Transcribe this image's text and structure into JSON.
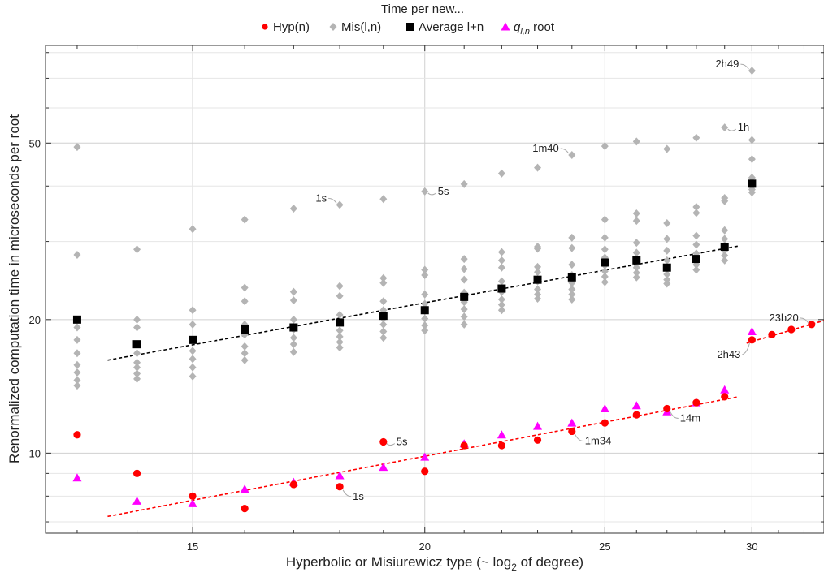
{
  "chart_data": {
    "type": "scatter",
    "title": "Time per new...",
    "xlabel": "Hyperbolic or Misiurewicz type (~ log",
    "xlabel_sub": "2",
    "xlabel_tail": " of degree)",
    "ylabel": "Renormalized computation time in microseconds per root",
    "x_scale": "log",
    "y_scale": "log",
    "xlim": [
      12.5,
      32.8
    ],
    "ylim": [
      6.6,
      83
    ],
    "xticks": [
      15,
      20,
      25,
      30
    ],
    "xtick_labels": [
      "15",
      "20",
      "25",
      "30"
    ],
    "yticks": [
      10,
      20,
      50
    ],
    "ytick_labels": [
      "10",
      "20",
      "50"
    ],
    "grid": true,
    "legend_position": "top",
    "series": [
      {
        "key": "hyp",
        "name": "Hyp(n)",
        "marker": "circle",
        "color": "#ff0000",
        "points": [
          {
            "x": 13,
            "y": 11.0
          },
          {
            "x": 14,
            "y": 9.0
          },
          {
            "x": 15,
            "y": 8.0
          },
          {
            "x": 16,
            "y": 7.5
          },
          {
            "x": 17,
            "y": 8.5
          },
          {
            "x": 18,
            "y": 8.4
          },
          {
            "x": 19,
            "y": 10.6
          },
          {
            "x": 20,
            "y": 9.1
          },
          {
            "x": 21,
            "y": 10.4
          },
          {
            "x": 22,
            "y": 10.4
          },
          {
            "x": 23,
            "y": 10.7
          },
          {
            "x": 24,
            "y": 11.2
          },
          {
            "x": 25,
            "y": 11.7
          },
          {
            "x": 26,
            "y": 12.2
          },
          {
            "x": 27,
            "y": 12.6
          },
          {
            "x": 28,
            "y": 13.0
          },
          {
            "x": 29,
            "y": 13.4
          },
          {
            "x": 30,
            "y": 18.0
          },
          {
            "x": 30.75,
            "y": 18.5
          },
          {
            "x": 31.5,
            "y": 19.0
          },
          {
            "x": 32.3,
            "y": 19.5
          }
        ]
      },
      {
        "key": "mis",
        "name": "Mis(l,n)",
        "marker": "diamond",
        "color": "#b4b4b4",
        "points": [
          {
            "x": 13,
            "y": 49
          },
          {
            "x": 13,
            "y": 28
          },
          {
            "x": 13,
            "y": 19.2
          },
          {
            "x": 13,
            "y": 18.0
          },
          {
            "x": 13,
            "y": 16.8
          },
          {
            "x": 13,
            "y": 15.8
          },
          {
            "x": 13,
            "y": 15.2
          },
          {
            "x": 13,
            "y": 14.6
          },
          {
            "x": 13,
            "y": 14.2
          },
          {
            "x": 14,
            "y": 28.8
          },
          {
            "x": 14,
            "y": 20.0
          },
          {
            "x": 14,
            "y": 19.2
          },
          {
            "x": 14,
            "y": 16.8
          },
          {
            "x": 14,
            "y": 16.0
          },
          {
            "x": 14,
            "y": 15.6
          },
          {
            "x": 14,
            "y": 15.1
          },
          {
            "x": 14,
            "y": 14.7
          },
          {
            "x": 15,
            "y": 32
          },
          {
            "x": 15,
            "y": 21.0
          },
          {
            "x": 15,
            "y": 19.5
          },
          {
            "x": 15,
            "y": 18.0
          },
          {
            "x": 15,
            "y": 17.0
          },
          {
            "x": 15,
            "y": 16.3
          },
          {
            "x": 15,
            "y": 15.6
          },
          {
            "x": 15,
            "y": 14.9
          },
          {
            "x": 16,
            "y": 33.6
          },
          {
            "x": 16,
            "y": 23.6
          },
          {
            "x": 16,
            "y": 22.0
          },
          {
            "x": 16,
            "y": 19.5
          },
          {
            "x": 16,
            "y": 18.5
          },
          {
            "x": 16,
            "y": 17.4
          },
          {
            "x": 16,
            "y": 16.8
          },
          {
            "x": 16,
            "y": 16.2
          },
          {
            "x": 17,
            "y": 35.6
          },
          {
            "x": 17,
            "y": 23.1
          },
          {
            "x": 17,
            "y": 22.1
          },
          {
            "x": 17,
            "y": 20.0
          },
          {
            "x": 17,
            "y": 19.0
          },
          {
            "x": 17,
            "y": 18.2
          },
          {
            "x": 17,
            "y": 17.6
          },
          {
            "x": 17,
            "y": 16.9
          },
          {
            "x": 18,
            "y": 36.3
          },
          {
            "x": 18,
            "y": 23.8
          },
          {
            "x": 18,
            "y": 22.6
          },
          {
            "x": 18,
            "y": 20.5
          },
          {
            "x": 18,
            "y": 19.7
          },
          {
            "x": 18,
            "y": 18.9
          },
          {
            "x": 18,
            "y": 18.3
          },
          {
            "x": 18,
            "y": 17.8
          },
          {
            "x": 18,
            "y": 17.3
          },
          {
            "x": 19,
            "y": 37.4
          },
          {
            "x": 19,
            "y": 24.8
          },
          {
            "x": 19,
            "y": 24.2
          },
          {
            "x": 19,
            "y": 22.0
          },
          {
            "x": 19,
            "y": 21.0
          },
          {
            "x": 19,
            "y": 20.1
          },
          {
            "x": 19,
            "y": 19.5
          },
          {
            "x": 19,
            "y": 18.8
          },
          {
            "x": 19,
            "y": 18.2
          },
          {
            "x": 20,
            "y": 38.9
          },
          {
            "x": 20,
            "y": 25.9
          },
          {
            "x": 20,
            "y": 25.2
          },
          {
            "x": 20,
            "y": 22.8
          },
          {
            "x": 20,
            "y": 21.7
          },
          {
            "x": 20,
            "y": 20.9
          },
          {
            "x": 20,
            "y": 20.1
          },
          {
            "x": 20,
            "y": 19.4
          },
          {
            "x": 20,
            "y": 18.9
          },
          {
            "x": 21,
            "y": 40.4
          },
          {
            "x": 21,
            "y": 27.4
          },
          {
            "x": 21,
            "y": 26.0
          },
          {
            "x": 21,
            "y": 24.6
          },
          {
            "x": 21,
            "y": 23.0
          },
          {
            "x": 21,
            "y": 21.9
          },
          {
            "x": 21,
            "y": 21.1
          },
          {
            "x": 21,
            "y": 20.3
          },
          {
            "x": 21,
            "y": 19.5
          },
          {
            "x": 22,
            "y": 42.7
          },
          {
            "x": 22,
            "y": 28.4
          },
          {
            "x": 22,
            "y": 27.2
          },
          {
            "x": 22,
            "y": 26.2
          },
          {
            "x": 22,
            "y": 24.4
          },
          {
            "x": 22,
            "y": 23.1
          },
          {
            "x": 22,
            "y": 22.2
          },
          {
            "x": 22,
            "y": 21.6
          },
          {
            "x": 22,
            "y": 21.0
          },
          {
            "x": 23,
            "y": 44.0
          },
          {
            "x": 23,
            "y": 29.2
          },
          {
            "x": 23,
            "y": 28.9
          },
          {
            "x": 23,
            "y": 26.3
          },
          {
            "x": 23,
            "y": 25.6
          },
          {
            "x": 23,
            "y": 24.4
          },
          {
            "x": 23,
            "y": 23.4
          },
          {
            "x": 23,
            "y": 22.8
          },
          {
            "x": 23,
            "y": 22.3
          },
          {
            "x": 24,
            "y": 47.0
          },
          {
            "x": 24,
            "y": 30.6
          },
          {
            "x": 24,
            "y": 29.0
          },
          {
            "x": 24,
            "y": 26.6
          },
          {
            "x": 24,
            "y": 25.2
          },
          {
            "x": 24,
            "y": 24.2
          },
          {
            "x": 24,
            "y": 23.4
          },
          {
            "x": 24,
            "y": 22.8
          },
          {
            "x": 24,
            "y": 22.2
          },
          {
            "x": 25,
            "y": 49.2
          },
          {
            "x": 25,
            "y": 33.6
          },
          {
            "x": 25,
            "y": 30.6
          },
          {
            "x": 25,
            "y": 28.8
          },
          {
            "x": 25,
            "y": 27.6
          },
          {
            "x": 25,
            "y": 26.5
          },
          {
            "x": 25,
            "y": 25.7
          },
          {
            "x": 25,
            "y": 25.0
          },
          {
            "x": 25,
            "y": 24.3
          },
          {
            "x": 26,
            "y": 50.4
          },
          {
            "x": 26,
            "y": 34.7
          },
          {
            "x": 26,
            "y": 33.4
          },
          {
            "x": 26,
            "y": 29.8
          },
          {
            "x": 26,
            "y": 28.3
          },
          {
            "x": 26,
            "y": 27.1
          },
          {
            "x": 26,
            "y": 26.2
          },
          {
            "x": 26,
            "y": 25.5
          },
          {
            "x": 26,
            "y": 24.9
          },
          {
            "x": 27,
            "y": 48.5
          },
          {
            "x": 27,
            "y": 33.0
          },
          {
            "x": 27,
            "y": 30.4
          },
          {
            "x": 27,
            "y": 28.6
          },
          {
            "x": 27,
            "y": 27.2
          },
          {
            "x": 27,
            "y": 26.1
          },
          {
            "x": 27,
            "y": 25.3
          },
          {
            "x": 27,
            "y": 24.6
          },
          {
            "x": 27,
            "y": 24.1
          },
          {
            "x": 28,
            "y": 51.4
          },
          {
            "x": 28,
            "y": 35.9
          },
          {
            "x": 28,
            "y": 34.8
          },
          {
            "x": 28,
            "y": 30.9
          },
          {
            "x": 28,
            "y": 29.5
          },
          {
            "x": 28,
            "y": 28.2
          },
          {
            "x": 28,
            "y": 27.2
          },
          {
            "x": 28,
            "y": 26.6
          },
          {
            "x": 28,
            "y": 25.9
          },
          {
            "x": 29,
            "y": 54.2
          },
          {
            "x": 29,
            "y": 37.6
          },
          {
            "x": 29,
            "y": 37.0
          },
          {
            "x": 29,
            "y": 31.8
          },
          {
            "x": 29,
            "y": 30.4
          },
          {
            "x": 29,
            "y": 29.4
          },
          {
            "x": 29,
            "y": 28.6
          },
          {
            "x": 29,
            "y": 27.9
          },
          {
            "x": 29,
            "y": 27.2
          },
          {
            "x": 30,
            "y": 72.8
          },
          {
            "x": 30,
            "y": 50.8
          },
          {
            "x": 30,
            "y": 46.0
          },
          {
            "x": 30,
            "y": 41.8
          },
          {
            "x": 30,
            "y": 40.6
          },
          {
            "x": 30,
            "y": 39.9
          },
          {
            "x": 30,
            "y": 39.3
          },
          {
            "x": 30,
            "y": 38.7
          }
        ]
      },
      {
        "key": "avg",
        "name": "Average l+n",
        "marker": "square",
        "color": "#000000",
        "points": [
          {
            "x": 13,
            "y": 20.0
          },
          {
            "x": 14,
            "y": 17.6
          },
          {
            "x": 15,
            "y": 18.0
          },
          {
            "x": 16,
            "y": 19.0
          },
          {
            "x": 17,
            "y": 19.2
          },
          {
            "x": 18,
            "y": 19.7
          },
          {
            "x": 19,
            "y": 20.4
          },
          {
            "x": 20,
            "y": 21.0
          },
          {
            "x": 21,
            "y": 22.5
          },
          {
            "x": 22,
            "y": 23.5
          },
          {
            "x": 23,
            "y": 24.6
          },
          {
            "x": 24,
            "y": 24.9
          },
          {
            "x": 25,
            "y": 26.9
          },
          {
            "x": 26,
            "y": 27.2
          },
          {
            "x": 27,
            "y": 26.2
          },
          {
            "x": 28,
            "y": 27.4
          },
          {
            "x": 29,
            "y": 29.2
          },
          {
            "x": 30,
            "y": 40.5
          }
        ]
      },
      {
        "key": "q",
        "name": "q",
        "name_sub": "l,n",
        "name_tail": " root",
        "marker": "triangle",
        "color": "#ff00ff",
        "points": [
          {
            "x": 13,
            "y": 8.8
          },
          {
            "x": 14,
            "y": 7.8
          },
          {
            "x": 15,
            "y": 7.7
          },
          {
            "x": 16,
            "y": 8.3
          },
          {
            "x": 17,
            "y": 8.6
          },
          {
            "x": 18,
            "y": 8.9
          },
          {
            "x": 19,
            "y": 9.3
          },
          {
            "x": 20,
            "y": 9.8
          },
          {
            "x": 21,
            "y": 10.5
          },
          {
            "x": 22,
            "y": 11.0
          },
          {
            "x": 23,
            "y": 11.5
          },
          {
            "x": 24,
            "y": 11.7
          },
          {
            "x": 25,
            "y": 12.6
          },
          {
            "x": 26,
            "y": 12.8
          },
          {
            "x": 27,
            "y": 12.4
          },
          {
            "x": 28,
            "y": 13.0
          },
          {
            "x": 29,
            "y": 13.9
          },
          {
            "x": 30,
            "y": 18.8
          }
        ]
      }
    ],
    "fit_lines": [
      {
        "key": "avg-fit",
        "color": "#000000",
        "from": {
          "x": 13.5,
          "y": 16.2
        },
        "to": {
          "x": 29.5,
          "y": 29.3
        }
      },
      {
        "key": "hyp-fit-1",
        "color": "#ff0000",
        "from": {
          "x": 13.5,
          "y": 7.2
        },
        "to": {
          "x": 29.5,
          "y": 13.4
        }
      },
      {
        "key": "hyp-fit-2",
        "color": "#ff0000",
        "from": {
          "x": 29.8,
          "y": 17.7
        },
        "to": {
          "x": 32.8,
          "y": 19.9
        }
      }
    ],
    "annotations": [
      {
        "text": "1s",
        "x": 18,
        "y": 36.3,
        "side": "left"
      },
      {
        "text": "5s",
        "x": 20,
        "y": 38.9,
        "side": "right"
      },
      {
        "text": "1m40",
        "x": 24,
        "y": 47.0,
        "side": "left"
      },
      {
        "text": "1h",
        "x": 29,
        "y": 54.2,
        "side": "right"
      },
      {
        "text": "2h49",
        "x": 30,
        "y": 72.8,
        "side": "left"
      },
      {
        "text": "5s",
        "x": 19,
        "y": 10.6,
        "side": "right"
      },
      {
        "text": "1s",
        "x": 18,
        "y": 8.4,
        "side": "right-down"
      },
      {
        "text": "1m34",
        "x": 24,
        "y": 11.2,
        "side": "right-down"
      },
      {
        "text": "14m",
        "x": 27,
        "y": 12.6,
        "side": "right-down"
      },
      {
        "text": "2h43",
        "x": 30,
        "y": 18.0,
        "side": "left-down"
      },
      {
        "text": "23h20",
        "x": 32.3,
        "y": 19.5,
        "side": "left"
      }
    ]
  }
}
